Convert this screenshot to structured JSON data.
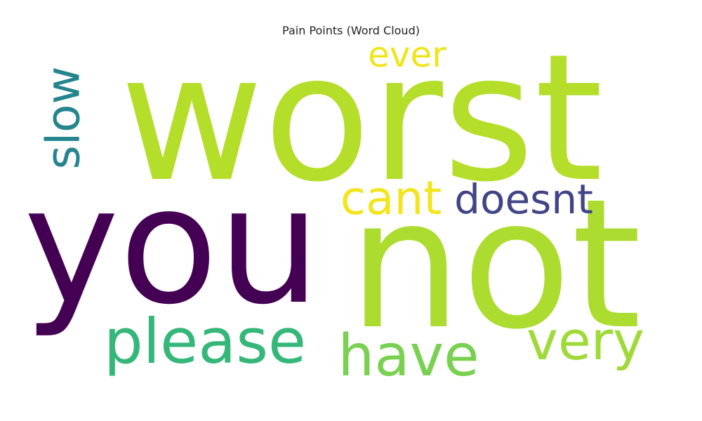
{
  "chart_data": {
    "type": "wordcloud",
    "title": "Pain Points (Word Cloud)",
    "words": [
      {
        "text": "worst",
        "weight": 1.0,
        "color": "#b5de2b",
        "orientation": "horizontal"
      },
      {
        "text": "not",
        "weight": 0.98,
        "color": "#addc30",
        "orientation": "horizontal"
      },
      {
        "text": "you",
        "weight": 0.85,
        "color": "#440154",
        "orientation": "horizontal"
      },
      {
        "text": "please",
        "weight": 0.32,
        "color": "#35b779",
        "orientation": "horizontal"
      },
      {
        "text": "have",
        "weight": 0.28,
        "color": "#7ad151",
        "orientation": "horizontal"
      },
      {
        "text": "very",
        "weight": 0.27,
        "color": "#a0da39",
        "orientation": "horizontal"
      },
      {
        "text": "cant",
        "weight": 0.23,
        "color": "#f2e51d",
        "orientation": "horizontal"
      },
      {
        "text": "slow",
        "weight": 0.23,
        "color": "#25858e",
        "orientation": "vertical"
      },
      {
        "text": "doesnt",
        "weight": 0.19,
        "color": "#414487",
        "orientation": "horizontal"
      },
      {
        "text": "ever",
        "weight": 0.16,
        "color": "#efe51c",
        "orientation": "horizontal"
      }
    ]
  }
}
